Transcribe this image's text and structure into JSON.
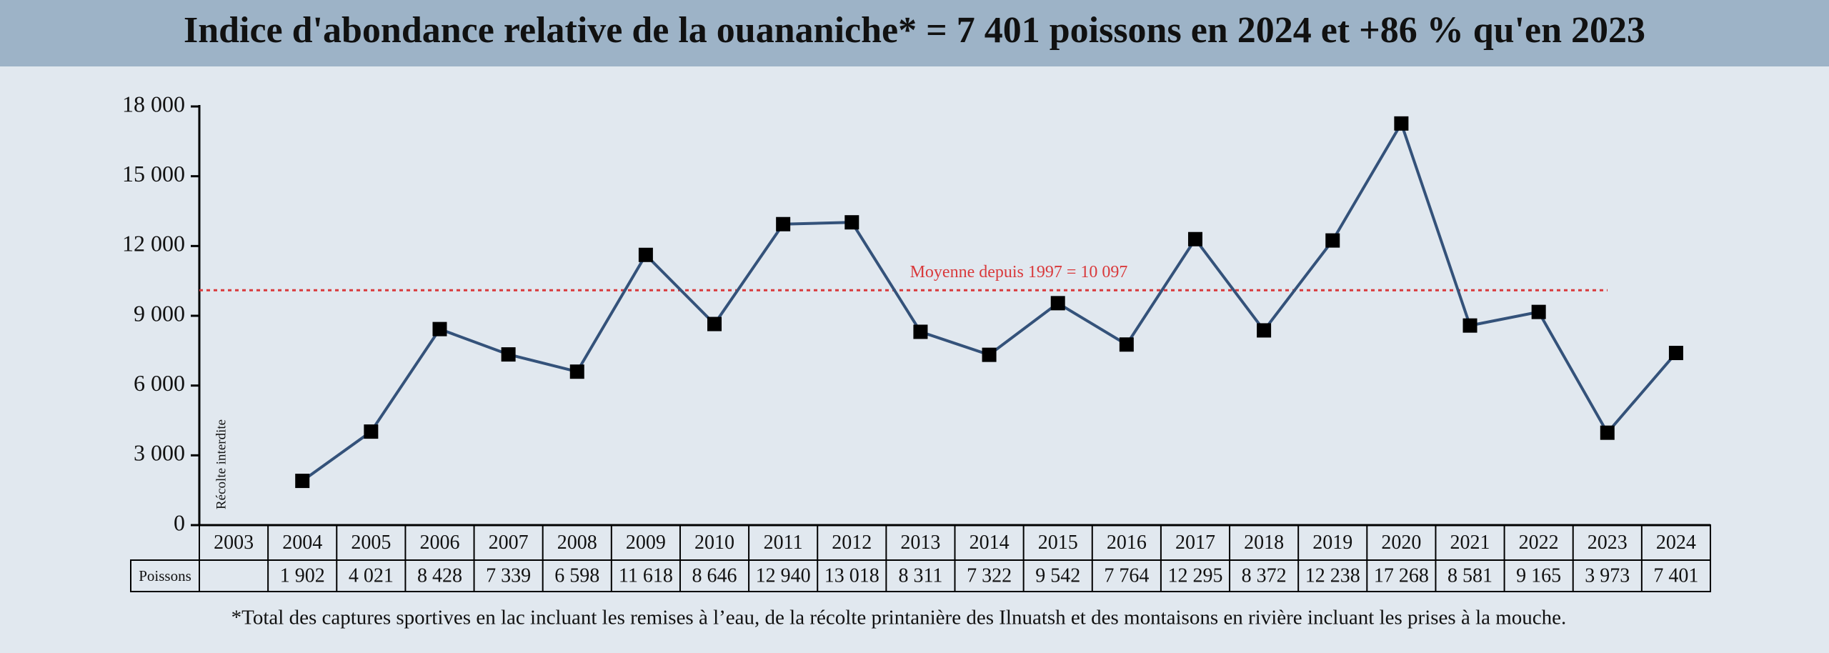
{
  "chart_data": {
    "type": "line",
    "title": "Indice d'abondance relative de la ouananiche* = 7 401 poissons en 2024 et +86 % qu'en 2023",
    "categories": [
      "2003",
      "2004",
      "2005",
      "2006",
      "2007",
      "2008",
      "2009",
      "2010",
      "2011",
      "2012",
      "2013",
      "2014",
      "2015",
      "2016",
      "2017",
      "2018",
      "2019",
      "2020",
      "2021",
      "2022",
      "2023",
      "2024"
    ],
    "series": [
      {
        "name": "Poissons",
        "color": "#34527a",
        "values": [
          null,
          1902,
          4021,
          8428,
          7339,
          6598,
          11618,
          8646,
          12940,
          13018,
          8311,
          7322,
          9542,
          7764,
          12295,
          8372,
          12238,
          17268,
          8581,
          9165,
          3973,
          7401
        ],
        "value_labels": [
          null,
          "1 902",
          "4 021",
          "8 428",
          "7 339",
          "6 598",
          "11 618",
          "8 646",
          "12 940",
          "13 018",
          "8 311",
          "7 322",
          "9 542",
          "7 764",
          "12 295",
          "8 372",
          "12 238",
          "17 268",
          "8 581",
          "9 165",
          "3 973",
          "7 401"
        ]
      }
    ],
    "ylim": [
      0,
      18000
    ],
    "yticks": [
      0,
      {
        "value": 3000,
        "label": "3 000"
      },
      {
        "value": 6000,
        "label": "6 000"
      },
      {
        "value": 9000,
        "label": "9 000"
      },
      {
        "value": 12000,
        "label": "12 000"
      },
      {
        "value": 15000,
        "label": "15 000"
      },
      {
        "value": 18000,
        "label": "18 000"
      }
    ],
    "mean_line": {
      "value": 10097,
      "label": "Moyenne depuis 1997 = 10 097",
      "color": "#d9393b"
    },
    "annotation": "Récolte interdite",
    "footnote": "*Total des captures sportives en lac incluant les remises à l’eau, de la récolte printanière des Ilnuatsh et des montaisons en rivière incluant les prises à la mouche."
  }
}
